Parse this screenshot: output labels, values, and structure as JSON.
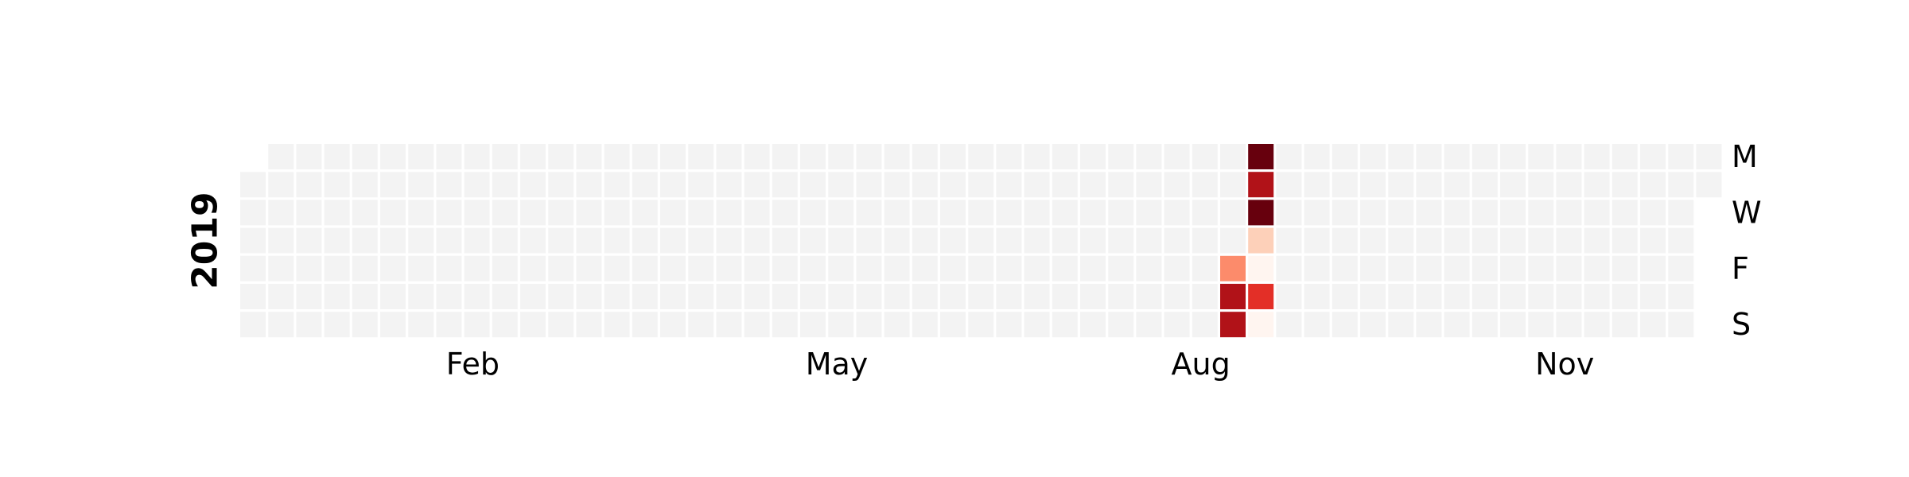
{
  "chart_data": {
    "type": "heatmap",
    "year_label": "2019",
    "month_labels": [
      {
        "label": "Feb",
        "week": 7
      },
      {
        "label": "May",
        "week": 20
      },
      {
        "label": "Aug",
        "week": 33
      },
      {
        "label": "Nov",
        "week": 46
      }
    ],
    "day_labels": [
      {
        "label": "M",
        "day": 0
      },
      {
        "label": "W",
        "day": 2
      },
      {
        "label": "F",
        "day": 4
      },
      {
        "label": "S",
        "day": 6
      }
    ],
    "first_week_start_day": 1,
    "last_week_end_day": 1,
    "week_count": 53,
    "cells": [
      {
        "week": 35,
        "day": 4,
        "value": 0.45
      },
      {
        "week": 35,
        "day": 5,
        "value": 0.85
      },
      {
        "week": 35,
        "day": 6,
        "value": 0.85
      },
      {
        "week": 36,
        "day": 0,
        "value": 1.0
      },
      {
        "week": 36,
        "day": 1,
        "value": 0.75
      },
      {
        "week": 36,
        "day": 2,
        "value": 0.9
      },
      {
        "week": 36,
        "day": 3,
        "value": 0.25
      },
      {
        "week": 36,
        "day": 4,
        "value": 0.05
      },
      {
        "week": 36,
        "day": 5,
        "value": 0.5
      },
      {
        "week": 36,
        "day": 6,
        "value": 0.08
      }
    ],
    "colors": {
      "empty": "#f3f3f3",
      "scale": [
        "#fff5f0",
        "#fdd0b9",
        "#fc8b6b",
        "#e32f27",
        "#b11218",
        "#67000d"
      ],
      "cell_border": "#ffffff"
    }
  }
}
